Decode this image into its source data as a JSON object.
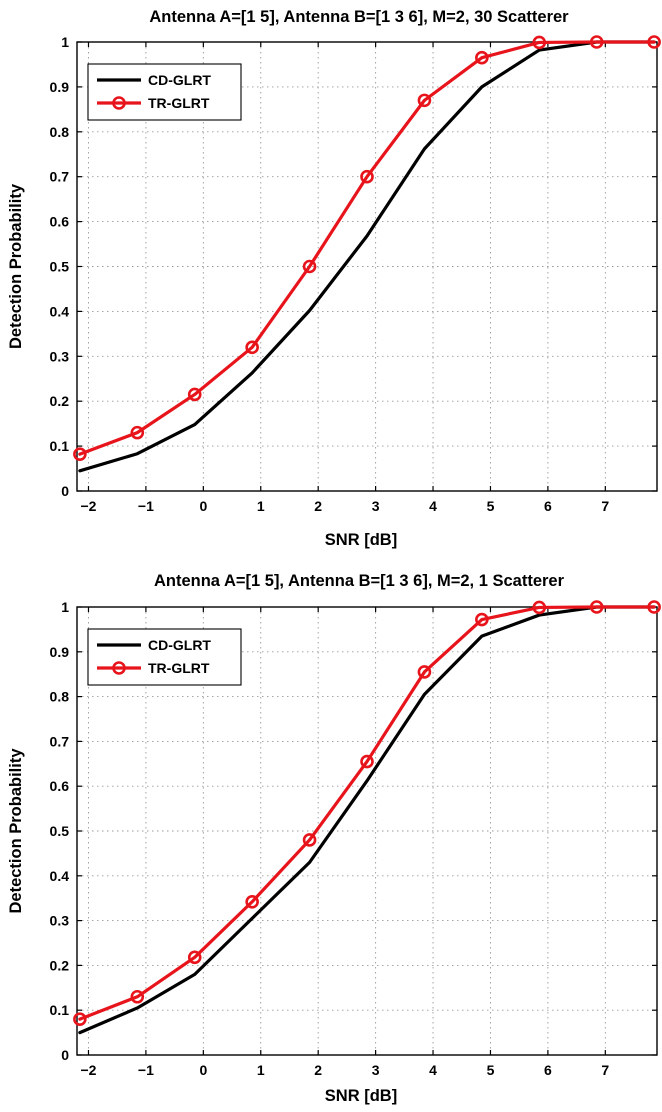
{
  "colors": {
    "cd": "#000000",
    "tr": "#e8141b",
    "grid": "#9a9a9a"
  },
  "chart_data": [
    {
      "type": "line",
      "title": "Antenna A=[1 5], Antenna B=[1 3 6], M=2, 30 Scatterer",
      "xlabel": "SNR [dB]",
      "ylabel": "Detection Probability",
      "xlim": [
        -2.2,
        7.9
      ],
      "ylim": [
        0,
        1
      ],
      "xticks": [
        -2,
        -1,
        0,
        1,
        2,
        3,
        4,
        5,
        6,
        7
      ],
      "yticks": [
        0,
        0.1,
        0.2,
        0.3,
        0.4,
        0.5,
        0.6,
        0.7,
        0.8,
        0.9,
        1
      ],
      "grid": true,
      "legend_position": "top-left",
      "x": [
        -2.15,
        -1.15,
        -0.15,
        0.85,
        1.85,
        2.85,
        3.85,
        4.85,
        5.85,
        6.85,
        7.85
      ],
      "series": [
        {
          "name": "CD-GLRT",
          "marker": "none",
          "values": [
            0.045,
            0.083,
            0.148,
            0.263,
            0.402,
            0.568,
            0.762,
            0.9,
            0.982,
            1.0,
            1.0
          ]
        },
        {
          "name": "TR-GLRT",
          "marker": "circle",
          "values": [
            0.082,
            0.13,
            0.215,
            0.32,
            0.5,
            0.7,
            0.87,
            0.965,
            0.999,
            1.0,
            1.0
          ]
        }
      ]
    },
    {
      "type": "line",
      "title": "Antenna A=[1 5], Antenna B=[1 3 6], M=2, 1 Scatterer",
      "xlabel": "SNR [dB]",
      "ylabel": "Detection Probability",
      "xlim": [
        -2.2,
        7.9
      ],
      "ylim": [
        0,
        1
      ],
      "xticks": [
        -2,
        -1,
        0,
        1,
        2,
        3,
        4,
        5,
        6,
        7
      ],
      "yticks": [
        0,
        0.1,
        0.2,
        0.3,
        0.4,
        0.5,
        0.6,
        0.7,
        0.8,
        0.9,
        1
      ],
      "grid": true,
      "legend_position": "top-left",
      "x": [
        -2.15,
        -1.15,
        -0.15,
        0.85,
        1.85,
        2.85,
        3.85,
        4.85,
        5.85,
        6.85,
        7.85
      ],
      "series": [
        {
          "name": "CD-GLRT",
          "marker": "none",
          "values": [
            0.05,
            0.105,
            0.18,
            0.305,
            0.43,
            0.612,
            0.805,
            0.935,
            0.982,
            1.0,
            1.0
          ]
        },
        {
          "name": "TR-GLRT",
          "marker": "circle",
          "values": [
            0.08,
            0.13,
            0.218,
            0.342,
            0.48,
            0.655,
            0.855,
            0.972,
            0.999,
            1.0,
            1.0
          ]
        }
      ]
    }
  ]
}
